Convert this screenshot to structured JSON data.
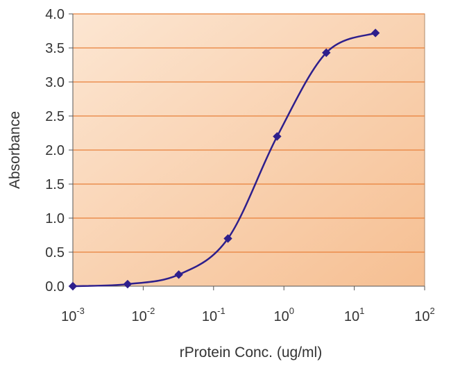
{
  "chart_data": {
    "type": "line",
    "title": "",
    "xlabel": "rProtein Conc. (ug/ml)",
    "ylabel": "Absorbance",
    "x_scale": "log10",
    "xlim": [
      0.001,
      100
    ],
    "ylim": [
      0,
      4.0
    ],
    "grid": "horizontal",
    "legend": "none",
    "x_tick_labels": [
      {
        "base": "10",
        "exp": "-3"
      },
      {
        "base": "10",
        "exp": "-2"
      },
      {
        "base": "10",
        "exp": "-1"
      },
      {
        "base": "10",
        "exp": "0"
      },
      {
        "base": "10",
        "exp": "1"
      },
      {
        "base": "10",
        "exp": "2"
      }
    ],
    "y_tick_labels": [
      "0.0",
      "0.5",
      "1.0",
      "1.5",
      "2.0",
      "2.5",
      "3.0",
      "3.5",
      "4.0"
    ],
    "series": [
      {
        "x": [
          0.001,
          0.006,
          0.032,
          0.16,
          0.8,
          4.0,
          20.0
        ],
        "values": [
          0.0,
          0.03,
          0.17,
          0.7,
          2.2,
          3.43,
          3.72
        ],
        "marker": "diamond",
        "smooth": true
      }
    ],
    "colors": {
      "series_line": "#2e1f8c",
      "marker": "#2e1f8c",
      "gridline": "#e8803a",
      "plot_bg_light": "#fce6d2",
      "plot_bg_dark": "#f6bf92",
      "plot_border": "#b08a6a",
      "axis": "#555555",
      "text": "#333333"
    }
  }
}
